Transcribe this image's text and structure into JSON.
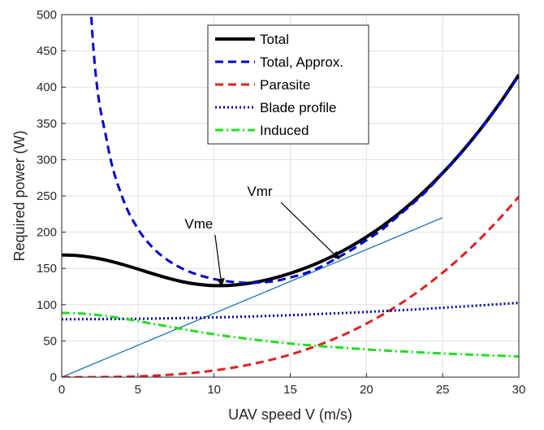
{
  "chart_data": {
    "type": "line",
    "title": "",
    "xlabel": "UAV speed V (m/s)",
    "ylabel": "Required power (W)",
    "xlim": [
      0,
      30
    ],
    "ylim": [
      0,
      500
    ],
    "xticks": [
      0,
      5,
      10,
      15,
      20,
      25,
      30
    ],
    "yticks": [
      0,
      50,
      100,
      150,
      200,
      250,
      300,
      350,
      400,
      450,
      500
    ],
    "grid": true,
    "legend_position": "top-center",
    "x": [
      0,
      1,
      2,
      3,
      4,
      5,
      6,
      7,
      8,
      9,
      10,
      11,
      12,
      13,
      14,
      15,
      16,
      17,
      18,
      19,
      20,
      21,
      22,
      23,
      24,
      25,
      26,
      27,
      28,
      29,
      30
    ],
    "series": [
      {
        "name": "Total",
        "color": "#000000",
        "style": "solid",
        "values": [
          168.5,
          167.7,
          165.1,
          161.0,
          155.4,
          149.1,
          142.5,
          136.4,
          131.3,
          127.9,
          126.3,
          126.6,
          128.6,
          132.1,
          137.0,
          143.2,
          150.6,
          159.3,
          169.3,
          180.6,
          193.4,
          207.7,
          223.6,
          241.1,
          260.4,
          281.5,
          304.4,
          329.3,
          356.3,
          385.4,
          416.9
        ]
      },
      {
        "name": "Total, Approx.",
        "color": "#0000cc",
        "style": "dashed",
        "values": [
          null,
          962.9,
          477.8,
          321.8,
          247.0,
          204.6,
          178.1,
          160.7,
          148.9,
          140.8,
          135.3,
          131.9,
          130.2,
          130.6,
          132.6,
          137.5,
          143.4,
          152.2,
          163.4,
          175.4,
          188.9,
          203.2,
          220.9,
          238.7,
          258.1,
          281.2,
          304.7,
          329.0,
          356.2,
          384.4,
          416.2
        ]
      },
      {
        "name": "Parasite",
        "color": "#dd2222",
        "style": "dashed",
        "values": [
          0.0,
          0.01,
          0.07,
          0.25,
          0.59,
          1.15,
          1.99,
          3.16,
          4.72,
          6.72,
          9.22,
          12.3,
          15.9,
          20.3,
          25.3,
          31.1,
          37.8,
          45.3,
          53.8,
          63.3,
          73.8,
          85.4,
          98.2,
          112.2,
          127.5,
          144.1,
          162.0,
          181.4,
          202.4,
          224.9,
          249.0
        ]
      },
      {
        "name": "Blade profile",
        "color": "#0000aa",
        "style": "dotted",
        "values": [
          79.9,
          79.9,
          80.0,
          80.1,
          80.3,
          80.5,
          80.8,
          81.1,
          81.5,
          81.9,
          82.4,
          82.9,
          83.5,
          84.1,
          84.8,
          85.5,
          86.3,
          87.2,
          88.0,
          89.0,
          90.0,
          91.0,
          92.1,
          93.2,
          94.4,
          95.7,
          97.0,
          98.3,
          99.7,
          101.1,
          102.6
        ]
      },
      {
        "name": "Induced",
        "color": "#22dd22",
        "style": "dashdot",
        "values": [
          88.6,
          88.1,
          86.5,
          84.1,
          80.9,
          77.4,
          73.6,
          69.8,
          66.0,
          62.5,
          59.2,
          56.1,
          53.4,
          50.8,
          48.5,
          46.4,
          44.5,
          42.8,
          41.2,
          39.7,
          38.3,
          37.0,
          35.8,
          34.7,
          33.7,
          32.7,
          31.8,
          30.9,
          30.1,
          29.4,
          28.6
        ]
      },
      {
        "name": "",
        "color": "#1f77b4",
        "style": "thin-solid",
        "x": [
          0,
          25
        ],
        "values": [
          0,
          220
        ]
      }
    ],
    "annotations": [
      {
        "text": "Vme",
        "text_at": [
          9.0,
          205
        ],
        "arrow_to": [
          10.5,
          126
        ]
      },
      {
        "text": "Vmr",
        "text_at": [
          13.0,
          250
        ],
        "arrow_to": [
          18.2,
          163
        ]
      }
    ]
  }
}
